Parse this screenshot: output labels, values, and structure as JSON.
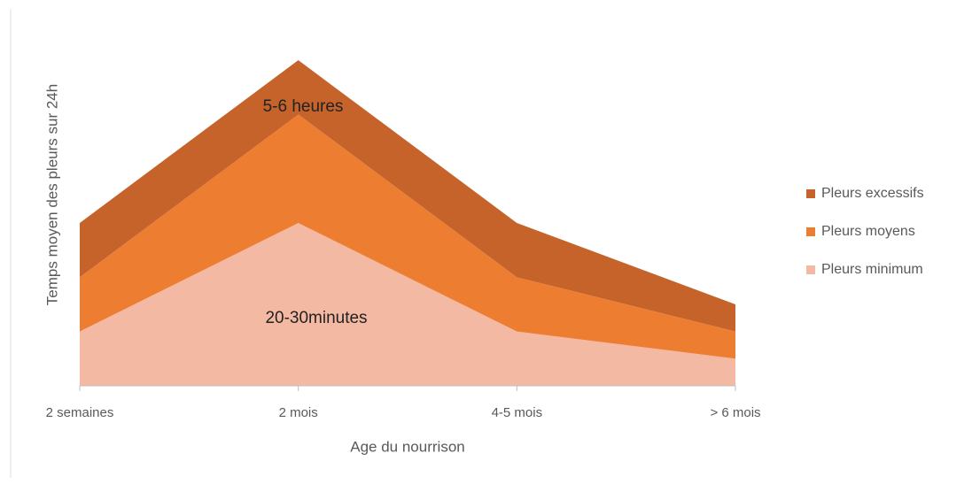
{
  "chart_data": {
    "type": "stacked_area",
    "x_label": "Age du nourrison",
    "y_label": "Temps moyen des pleurs sur 24h",
    "categories": [
      "2 semaines",
      "2 mois",
      "4-5 mois",
      "> 6 mois"
    ],
    "series": [
      {
        "name": "Pleurs minimum",
        "color": "#f4b9a2",
        "values": [
          1,
          3,
          1,
          0.5
        ]
      },
      {
        "name": "Pleurs moyens",
        "color": "#ed7d31",
        "values": [
          1,
          2,
          1,
          0.5
        ]
      },
      {
        "name": "Pleurs excessifs",
        "color": "#c5632b",
        "values": [
          1,
          1,
          1,
          0.5
        ]
      }
    ],
    "ylim": [
      0,
      6
    ],
    "annotations": [
      "5-6 heures",
      "20-30minutes"
    ],
    "legend": "right"
  }
}
